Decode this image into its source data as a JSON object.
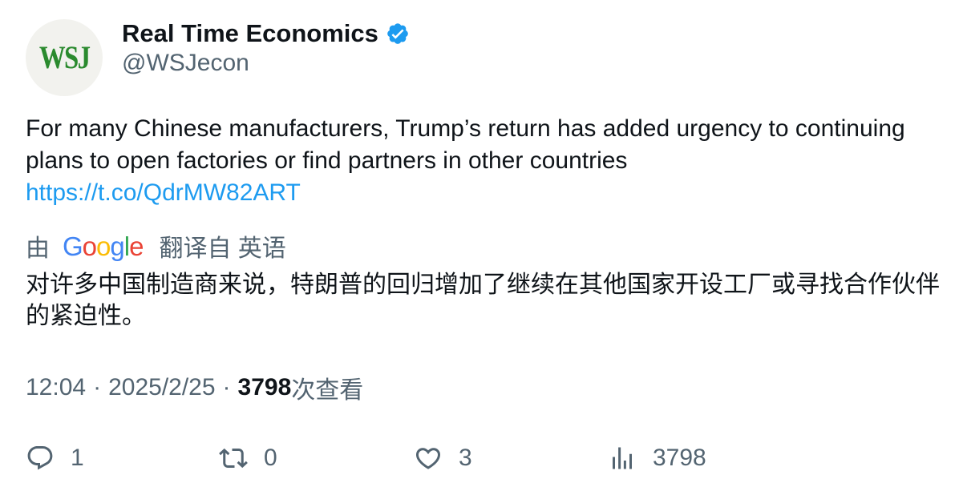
{
  "author": {
    "display_name": "Real Time Economics",
    "handle": "@WSJecon",
    "avatar_text": "WSJ",
    "verified": true
  },
  "tweet": {
    "text": "For many Chinese manufacturers, Trump’s return has added urgency to continuing plans to open factories or find partners in other countries",
    "link": "https://t.co/QdrMW82ART"
  },
  "translation": {
    "prefix": "由",
    "google_letters": [
      "G",
      "o",
      "o",
      "g",
      "l",
      "e"
    ],
    "suffix": "翻译自 英语",
    "text": "对许多中国制造商来说，特朗普的回归增加了继续在其他国家开设工厂或寻找合作伙伴的紧迫性。"
  },
  "meta": {
    "time": "12:04",
    "separator": "·",
    "date": "2025/2/25",
    "views_count": "3798",
    "views_label": "次查看"
  },
  "actions": {
    "reply_count": "1",
    "retweet_count": "0",
    "like_count": "3",
    "views_count": "3798"
  },
  "colors": {
    "text": "#0f1419",
    "secondary": "#536471",
    "link": "#1d9bf0",
    "verified": "#1d9bf0",
    "wsj_green": "#2a8a2e"
  },
  "icons": {
    "verified": "verified-badge-icon",
    "reply": "reply-bubble-icon",
    "retweet": "retweet-icon",
    "like": "heart-icon",
    "views": "bar-chart-icon",
    "google": "google-logo"
  }
}
